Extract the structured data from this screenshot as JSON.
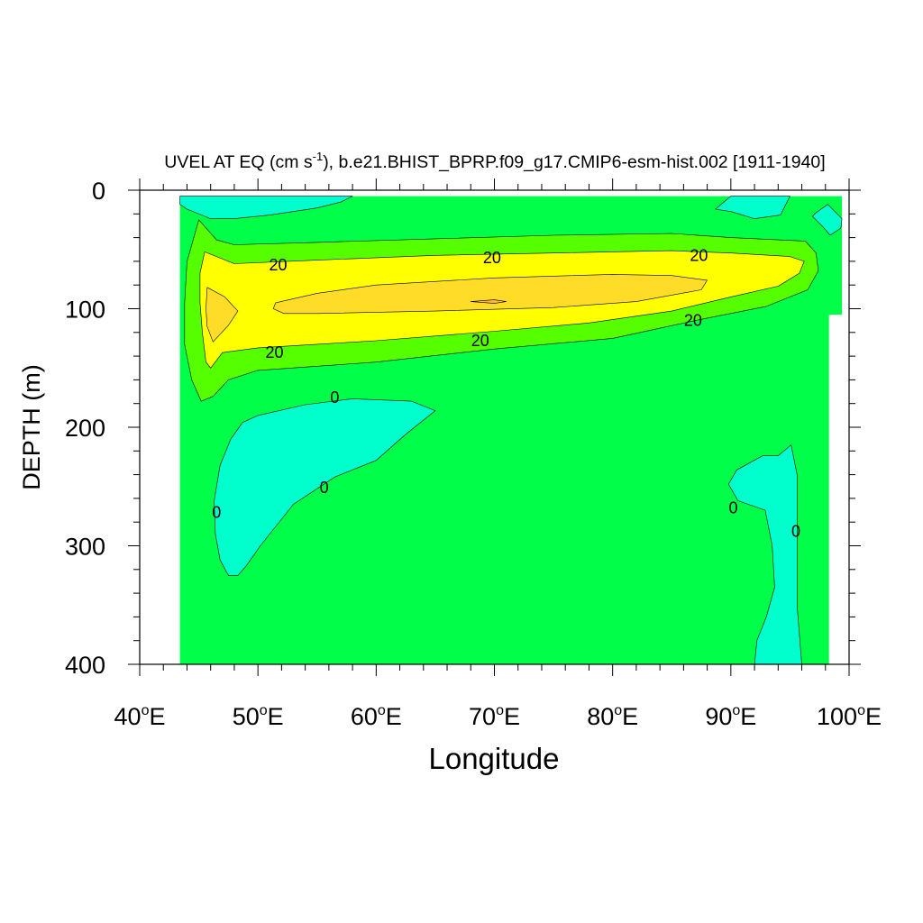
{
  "chart_data": {
    "type": "contour",
    "title": {
      "prefix": "UVEL AT EQ (cm s",
      "superscript": "-1",
      "suffix": "), b.e21.BHIST_BPRP.f09_g17.CMIP6-esm-hist.002 [1911-1940]"
    },
    "xlabel": "Longitude",
    "ylabel": "DEPTH (m)",
    "xlim": [
      40,
      100
    ],
    "ylim": [
      0,
      400
    ],
    "y_inverted": true,
    "x_ticks": [
      {
        "value": 40,
        "num": "40",
        "sup": "o",
        "suffix": "E"
      },
      {
        "value": 50,
        "num": "50",
        "sup": "o",
        "suffix": "E"
      },
      {
        "value": 60,
        "num": "60",
        "sup": "o",
        "suffix": "E"
      },
      {
        "value": 70,
        "num": "70",
        "sup": "o",
        "suffix": "E"
      },
      {
        "value": 80,
        "num": "80",
        "sup": "o",
        "suffix": "E"
      },
      {
        "value": 90,
        "num": "90",
        "sup": "o",
        "suffix": "E"
      },
      {
        "value": 100,
        "num": "100",
        "sup": "o",
        "suffix": "E"
      }
    ],
    "y_ticks": [
      {
        "value": 0,
        "label": "0"
      },
      {
        "value": 100,
        "label": "100"
      },
      {
        "value": 200,
        "label": "200"
      },
      {
        "value": 300,
        "label": "300"
      },
      {
        "value": 400,
        "label": "400"
      }
    ],
    "grid": false,
    "levels": [
      {
        "name": "background",
        "range": "0 to 10",
        "color": "#00ff48"
      },
      {
        "name": "negative",
        "range": "< 0",
        "color": "#00ffcc"
      },
      {
        "name": "band-10-20",
        "range": "10 to 20",
        "color": "#55ff00"
      },
      {
        "name": "band-20-30",
        "range": "20 to 30",
        "color": "#ffff00"
      },
      {
        "name": "band-30-40",
        "range": "30 to 40",
        "color": "#ffdc28"
      },
      {
        "name": "band-40-50",
        "range": "> 40",
        "color": "#ffb640"
      }
    ],
    "data_extent": {
      "lon": [
        43.4,
        98.3
      ],
      "depth": [
        5,
        400
      ],
      "east_strip": {
        "lon": [
          98.3,
          99.4
        ],
        "depth": [
          5,
          105
        ]
      }
    },
    "regions": [
      {
        "name": "data-domain",
        "color_ref": 0,
        "points": [
          [
            43.4,
            5
          ],
          [
            99.4,
            5
          ],
          [
            99.4,
            105
          ],
          [
            98.3,
            105
          ],
          [
            98.3,
            400
          ],
          [
            43.4,
            400
          ]
        ]
      },
      {
        "name": "neg-top-west",
        "color_ref": 1,
        "points": [
          [
            43.4,
            5
          ],
          [
            58,
            5
          ],
          [
            57,
            10
          ],
          [
            55,
            15
          ],
          [
            51,
            21
          ],
          [
            48,
            24
          ],
          [
            46,
            24
          ],
          [
            44,
            16
          ],
          [
            43.4,
            12
          ]
        ]
      },
      {
        "name": "neg-top-east",
        "color_ref": 1,
        "points": [
          [
            90,
            5
          ],
          [
            95,
            5
          ],
          [
            94.2,
            21
          ],
          [
            92,
            24
          ],
          [
            90,
            18
          ],
          [
            88.7,
            16
          ]
        ]
      },
      {
        "name": "neg-top-far-east",
        "color_ref": 1,
        "points": [
          [
            97.2,
            19
          ],
          [
            98.2,
            12
          ],
          [
            99.4,
            24
          ],
          [
            99.3,
            32
          ],
          [
            98.4,
            38
          ],
          [
            97.8,
            31
          ],
          [
            96.9,
            22
          ]
        ]
      },
      {
        "name": "neg-west-deep",
        "color_ref": 1,
        "points": [
          [
            50,
            190
          ],
          [
            54,
            181
          ],
          [
            58,
            176
          ],
          [
            63,
            178
          ],
          [
            65,
            186
          ],
          [
            62.5,
            206
          ],
          [
            60,
            228
          ],
          [
            56.5,
            242
          ],
          [
            53,
            265
          ],
          [
            50.2,
            300
          ],
          [
            49,
            317
          ],
          [
            48.3,
            325
          ],
          [
            47.5,
            325
          ],
          [
            46.8,
            312
          ],
          [
            46.4,
            290
          ],
          [
            46.3,
            262
          ],
          [
            46.8,
            232
          ],
          [
            47.7,
            210
          ],
          [
            48.7,
            196
          ]
        ]
      },
      {
        "name": "neg-east-deep",
        "color_ref": 1,
        "points": [
          [
            92.7,
            224
          ],
          [
            94,
            224
          ],
          [
            95.1,
            215
          ],
          [
            95.6,
            240
          ],
          [
            95.6,
            300
          ],
          [
            95.6,
            350
          ],
          [
            96,
            400
          ],
          [
            92,
            400
          ],
          [
            92.2,
            380
          ],
          [
            93,
            360
          ],
          [
            93.7,
            335
          ],
          [
            93.5,
            300
          ],
          [
            92.9,
            270
          ],
          [
            90.6,
            262
          ],
          [
            89.8,
            248
          ],
          [
            90.5,
            236
          ]
        ]
      },
      {
        "name": "band-10-20",
        "color_ref": 2,
        "points": [
          [
            45,
            25
          ],
          [
            46.5,
            42
          ],
          [
            48,
            46
          ],
          [
            55,
            44
          ],
          [
            65,
            41
          ],
          [
            75,
            38
          ],
          [
            85,
            36.5
          ],
          [
            90,
            40
          ],
          [
            96.3,
            43
          ],
          [
            97.2,
            53
          ],
          [
            97.4,
            68
          ],
          [
            96.5,
            84
          ],
          [
            93,
            98
          ],
          [
            87,
            110
          ],
          [
            80,
            125
          ],
          [
            70,
            134
          ],
          [
            60,
            145
          ],
          [
            50,
            152
          ],
          [
            47.5,
            160
          ],
          [
            46.2,
            174
          ],
          [
            45.2,
            178
          ],
          [
            44.4,
            160
          ],
          [
            43.8,
            130
          ],
          [
            43.8,
            95
          ],
          [
            44,
            60
          ]
        ]
      },
      {
        "name": "band-20-30",
        "color_ref": 3,
        "points": [
          [
            45.5,
            52
          ],
          [
            48,
            62
          ],
          [
            55,
            59
          ],
          [
            65,
            55
          ],
          [
            75,
            53
          ],
          [
            85,
            51
          ],
          [
            90,
            53
          ],
          [
            95,
            56
          ],
          [
            96.2,
            60
          ],
          [
            95.8,
            70
          ],
          [
            94,
            81
          ],
          [
            90,
            90
          ],
          [
            85,
            102
          ],
          [
            78,
            112
          ],
          [
            70,
            119
          ],
          [
            60,
            127
          ],
          [
            50,
            133
          ],
          [
            47,
            137
          ],
          [
            46,
            150
          ],
          [
            45.6,
            145
          ],
          [
            45.3,
            120
          ],
          [
            45.1,
            95
          ],
          [
            45.1,
            70
          ]
        ]
      },
      {
        "name": "band-30-40-west",
        "color_ref": 4,
        "points": [
          [
            45.7,
            82
          ],
          [
            47.2,
            90
          ],
          [
            48.3,
            102
          ],
          [
            47.5,
            114
          ],
          [
            46.2,
            128
          ],
          [
            45.7,
            115
          ],
          [
            45.6,
            100
          ]
        ]
      },
      {
        "name": "band-30-40",
        "color_ref": 4,
        "points": [
          [
            51.5,
            95
          ],
          [
            55,
            87
          ],
          [
            60,
            80
          ],
          [
            70,
            74
          ],
          [
            80,
            71
          ],
          [
            85,
            72
          ],
          [
            88,
            76
          ],
          [
            87.5,
            84
          ],
          [
            82,
            94
          ],
          [
            75,
            99
          ],
          [
            65,
            102
          ],
          [
            55,
            104
          ],
          [
            52.2,
            104
          ],
          [
            51.3,
            100
          ]
        ]
      },
      {
        "name": "band-40-50",
        "color_ref": 5,
        "points": [
          [
            68,
            94
          ],
          [
            70,
            92.5
          ],
          [
            71,
            94
          ],
          [
            70,
            95.5
          ]
        ]
      }
    ],
    "contour_labels": [
      {
        "text": "20",
        "lon": 51.7,
        "depth": 63
      },
      {
        "text": "20",
        "lon": 69.8,
        "depth": 57
      },
      {
        "text": "20",
        "lon": 87.3,
        "depth": 55
      },
      {
        "text": "20",
        "lon": 86.8,
        "depth": 110
      },
      {
        "text": "20",
        "lon": 68.8,
        "depth": 127
      },
      {
        "text": "20",
        "lon": 51.4,
        "depth": 137
      },
      {
        "text": "0",
        "lon": 56.5,
        "depth": 175
      },
      {
        "text": "0",
        "lon": 55.6,
        "depth": 251
      },
      {
        "text": "0",
        "lon": 46.5,
        "depth": 272
      },
      {
        "text": "0",
        "lon": 90.2,
        "depth": 268
      },
      {
        "text": "0",
        "lon": 95.5,
        "depth": 288
      }
    ]
  }
}
